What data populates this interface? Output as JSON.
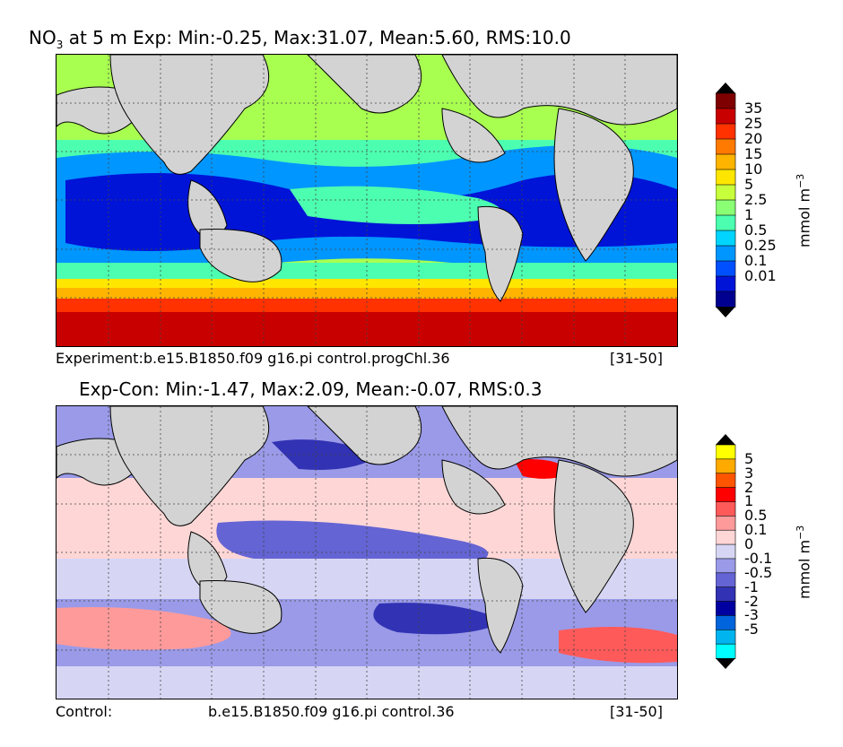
{
  "panel1": {
    "title_prefix": "NO",
    "title_sub": "3",
    "title_rest": " at 5 m Exp: Min:-0.25, Max:31.07, Mean:5.60, RMS:10.0",
    "caption_left": "Experiment:b.e15.B1850.f09 g16.pi control.progChl.36",
    "caption_right": "[31-50]",
    "colorbar": {
      "unit_label": "mmol m",
      "unit_exp": "−3",
      "ticks": [
        "35",
        "25",
        "20",
        "15",
        "10",
        "5",
        "2.5",
        "1",
        "0.5",
        "0.25",
        "0.1",
        "0.01"
      ],
      "colors": [
        "#7f0000",
        "#c80000",
        "#ff3200",
        "#ff7a00",
        "#ffb400",
        "#ffe600",
        "#c8ff3c",
        "#8aff74",
        "#4cffb0",
        "#00d4ff",
        "#0096ff",
        "#0050ff",
        "#0014d8",
        "#000090"
      ],
      "over_color": "#000000",
      "under_color": "#000000"
    }
  },
  "panel2": {
    "title": "Exp-Con: Min:-1.47, Max:2.09, Mean:-0.07, RMS:0.3",
    "caption_left": "Control:",
    "caption_mid": "b.e15.B1850.f09 g16.pi control.36",
    "caption_right": "[31-50]",
    "colorbar": {
      "unit_label": "mmol m",
      "unit_exp": "−3",
      "ticks": [
        "5",
        "3",
        "2",
        "1",
        "0.5",
        "0.1",
        "0",
        "-0.1",
        "-0.5",
        "-1",
        "-2",
        "-3",
        "-5"
      ],
      "colors": [
        "#ffff00",
        "#ffaa00",
        "#ff5500",
        "#ff0000",
        "#ff5a5a",
        "#ff9a9a",
        "#ffd6d6",
        "#d6d6f4",
        "#9a9ae8",
        "#6464d4",
        "#3232b4",
        "#0000a0",
        "#0064dc",
        "#00b4f0",
        "#00ffff"
      ],
      "over_color": "#000000",
      "under_color": "#000000"
    }
  },
  "colors": {
    "land": "#d3d3d3",
    "grid": "#444444"
  }
}
